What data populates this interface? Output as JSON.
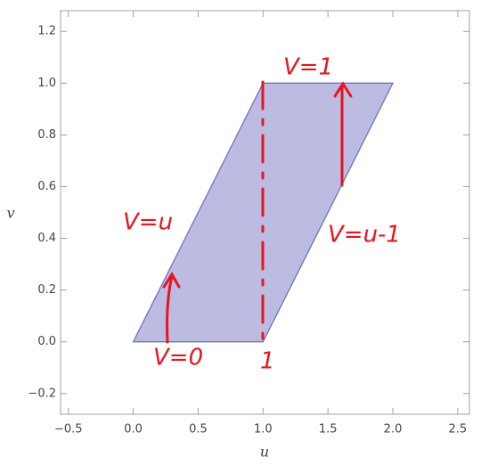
{
  "chart_data": {
    "type": "polygon",
    "x_label": "u",
    "y_label": "v",
    "series": [
      {
        "x": [
          0,
          1,
          2,
          1
        ],
        "values": [
          0,
          0,
          1,
          1
        ],
        "color": "#bcbce2",
        "edge_color": "#7070c4"
      }
    ],
    "xlim": [
      -0.56,
      2.59
    ],
    "ylim": [
      -0.28,
      1.28
    ],
    "xticks": [
      {
        "value": -0.5,
        "label": "−0.5"
      },
      {
        "value": 0,
        "label": "0.0"
      },
      0.5,
      {
        "value": 1,
        "label": "1.0"
      },
      1.5,
      {
        "value": 2,
        "label": "2.0"
      },
      2.5
    ],
    "yticks": [
      {
        "value": -0.2,
        "label": "−0.2"
      },
      {
        "value": 0,
        "label": "0.0"
      },
      0.2,
      0.4,
      0.6,
      0.8,
      {
        "value": 1,
        "label": "1.0"
      },
      1.2
    ],
    "annotations": [
      "V=1",
      "V=u",
      "V=u-1",
      "V=0",
      "1"
    ]
  }
}
